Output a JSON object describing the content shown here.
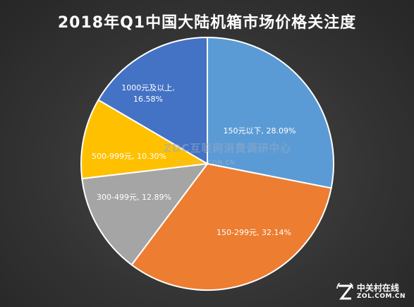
{
  "chart_data": {
    "type": "pie",
    "title": "2018年Q1中国大陆机箱市场价格关注度",
    "slices": [
      {
        "label": "150元以下",
        "value": 28.09,
        "display": "150元以下, 28.09%",
        "color": "#5b9bd5"
      },
      {
        "label": "150-299元",
        "value": 32.14,
        "display": "150-299元, 32.14%",
        "color": "#ed7d31"
      },
      {
        "label": "300-499元",
        "value": 12.89,
        "display": "300-499元, 12.89%",
        "color": "#a5a5a5"
      },
      {
        "label": "500-999元",
        "value": 10.3,
        "display": "500-999元, 10.30%",
        "color": "#ffc000"
      },
      {
        "label": "1000元及以上",
        "value": 16.58,
        "display_lines": [
          "1000元及以上,",
          "16.58%"
        ],
        "color": "#4472c4"
      }
    ]
  },
  "watermark": {
    "main": "ZDC互联网消费调研中心",
    "sub": "ZDC.ZOL.COM.CN"
  },
  "logo": {
    "cn": "中关村在线",
    "en": "ZOL.COM.CN"
  }
}
